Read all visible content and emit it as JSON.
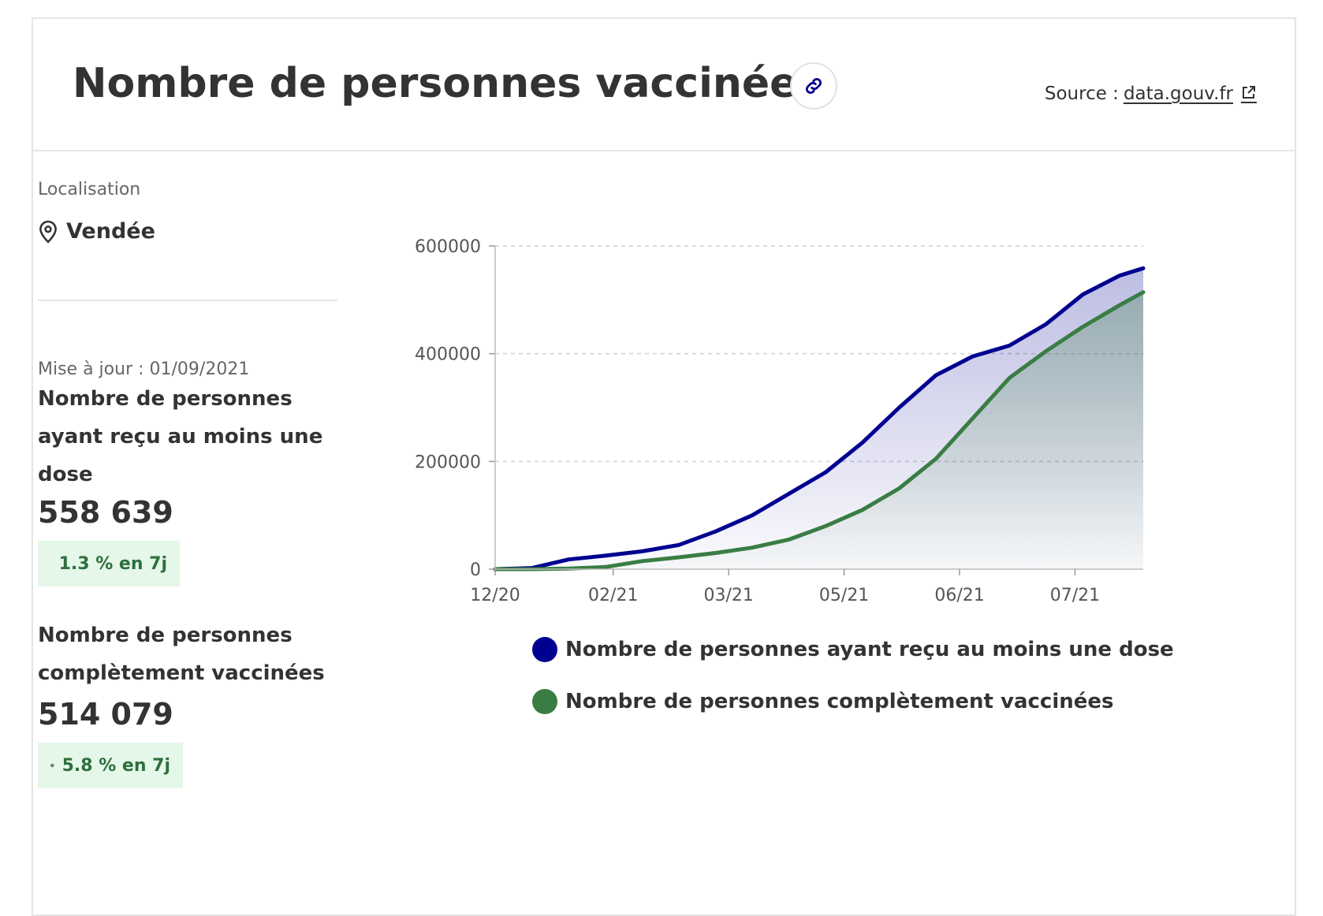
{
  "header": {
    "title": "Nombre de personnes vaccinées",
    "source_label": "Source :",
    "source_link": "data.gouv.fr",
    "link_icon": "link-icon",
    "external_icon": "external-link-icon"
  },
  "location": {
    "label": "Localisation",
    "value": "Vendée",
    "icon": "map-pin-icon"
  },
  "updated": "Mise à jour : 01/09/2021",
  "kpis": [
    {
      "label": "Nombre de personnes ayant reçu au moins une dose",
      "value": "558 639",
      "badge": "1.3 % en 7j"
    },
    {
      "label": "Nombre de personnes complètement vaccinées",
      "value": "514 079",
      "badge": "5.8 % en 7j"
    }
  ],
  "colors": {
    "dose1": "#000091",
    "complete": "#3a7d44",
    "badge_bg": "#e4f7e8",
    "badge_text": "#2f6f3e"
  },
  "chart_data": {
    "type": "area",
    "x": [
      "2020-12-27",
      "2021-01-10",
      "2021-01-24",
      "2021-02-07",
      "2021-02-21",
      "2021-03-07",
      "2021-03-21",
      "2021-04-04",
      "2021-04-18",
      "2021-05-02",
      "2021-05-16",
      "2021-05-30",
      "2021-06-13",
      "2021-06-27",
      "2021-07-11",
      "2021-07-25",
      "2021-08-08",
      "2021-08-22",
      "2021-08-31"
    ],
    "series": [
      {
        "name": "Nombre de personnes ayant reçu au moins une dose",
        "values": [
          0,
          2000,
          18000,
          25000,
          33000,
          45000,
          70000,
          100000,
          140000,
          180000,
          235000,
          300000,
          360000,
          395000,
          415000,
          455000,
          510000,
          545000,
          558639
        ]
      },
      {
        "name": "Nombre de personnes complètement vaccinées",
        "values": [
          0,
          0,
          1000,
          4000,
          15000,
          22000,
          30000,
          40000,
          55000,
          80000,
          110000,
          150000,
          205000,
          280000,
          355000,
          405000,
          450000,
          490000,
          514079
        ]
      }
    ],
    "x_tick_labels": [
      "12/20",
      "02/21",
      "03/21",
      "05/21",
      "06/21",
      "07/21"
    ],
    "x_tick_positions": [
      "2020-12-27",
      "2021-02-10",
      "2021-03-26",
      "2021-05-09",
      "2021-06-22",
      "2021-08-05"
    ],
    "y_ticks": [
      0,
      200000,
      400000,
      600000
    ],
    "y_tick_labels": [
      "0",
      "200000",
      "400000",
      "600000"
    ],
    "ylim": [
      0,
      600000
    ],
    "xlim": [
      "2020-12-27",
      "2021-08-31"
    ],
    "grid": "horizontal dashed",
    "legend_position": "bottom"
  }
}
